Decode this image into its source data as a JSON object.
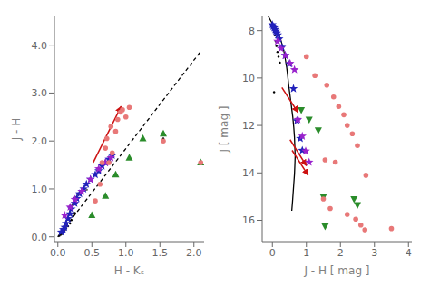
{
  "chart_data": [
    {
      "type": "scatter",
      "xlabel": "H - Kₛ",
      "ylabel": "J - H",
      "xlim": [
        -0.05,
        2.15
      ],
      "ylim": [
        -0.1,
        4.6
      ],
      "xticks": [
        {
          "value": 0.0,
          "label": "0.0"
        },
        0.5,
        {
          "value": 1.0,
          "label": "1.0"
        },
        1.5,
        {
          "value": 2.0,
          "label": "2.0"
        }
      ],
      "yticks": [
        {
          "value": 0.0,
          "label": "0.0"
        },
        {
          "value": 1.0,
          "label": "1.0"
        },
        {
          "value": 2.0,
          "label": "2.0"
        },
        {
          "value": 3.0,
          "label": "3.0"
        },
        {
          "value": 4.0,
          "label": "4.0"
        }
      ],
      "grid": false,
      "series": [
        {
          "type": "line",
          "color": "#444444",
          "line_style": "solid",
          "x": [
            0.0,
            0.02,
            0.04,
            0.06,
            0.08,
            0.1,
            0.12,
            0.15,
            0.18,
            0.22,
            0.26,
            0.3,
            0.33,
            0.36,
            0.38,
            0.4,
            0.42,
            0.44
          ],
          "values": [
            0.0,
            0.03,
            0.06,
            0.1,
            0.15,
            0.22,
            0.3,
            0.42,
            0.56,
            0.7,
            0.82,
            0.9,
            0.94,
            0.96,
            0.97,
            0.975,
            0.98,
            0.985
          ]
        },
        {
          "type": "line",
          "color": "#000000",
          "line_style": "dashed",
          "x": [
            0.0,
            2.1
          ],
          "values": [
            0.0,
            3.87
          ]
        },
        {
          "type": "arrow",
          "color": "#cc1111",
          "x": [
            0.52,
            0.93
          ],
          "values": [
            1.55,
            2.72
          ]
        },
        {
          "type": "scatter",
          "color": "#000000",
          "marker": "point",
          "x": [
            0.02,
            0.04,
            0.06,
            0.08,
            0.1,
            0.12,
            0.15,
            0.18,
            0.2,
            0.22,
            0.25,
            1.55
          ],
          "values": [
            0.02,
            0.04,
            0.06,
            0.1,
            0.14,
            0.18,
            0.22,
            0.28,
            0.35,
            0.42,
            0.5,
            2.05
          ]
        },
        {
          "type": "scatter",
          "color": "#2222bb",
          "marker": "star",
          "x": [
            0.05,
            0.08,
            0.1,
            0.12,
            0.15,
            0.18,
            0.2,
            0.25,
            0.28,
            0.32,
            0.38,
            0.42,
            0.48,
            0.55,
            0.6,
            0.65,
            0.7,
            0.75,
            0.8
          ],
          "values": [
            0.1,
            0.15,
            0.2,
            0.28,
            0.38,
            0.48,
            0.58,
            0.7,
            0.8,
            0.9,
            1.0,
            1.1,
            1.2,
            1.3,
            1.38,
            1.48,
            1.55,
            1.62,
            1.7
          ]
        },
        {
          "type": "scatter",
          "color": "#9922cc",
          "marker": "star",
          "x": [
            0.1,
            0.18,
            0.25,
            0.35,
            0.48,
            0.6,
            0.7,
            0.78
          ],
          "values": [
            0.45,
            0.62,
            0.78,
            0.95,
            1.2,
            1.42,
            1.55,
            1.65
          ]
        },
        {
          "type": "scatter",
          "color": "#2a8c2a",
          "marker": "triangle",
          "x": [
            0.5,
            0.7,
            0.85,
            1.05,
            1.25,
            1.55,
            2.1
          ],
          "values": [
            0.45,
            0.85,
            1.3,
            1.65,
            2.05,
            2.15,
            1.55
          ]
        },
        {
          "type": "scatter",
          "color": "#e87878",
          "marker": "circle",
          "x": [
            0.55,
            0.62,
            0.65,
            0.7,
            0.72,
            0.75,
            0.8,
            0.85,
            0.88,
            0.92,
            0.95,
            1.0,
            1.05,
            0.78,
            1.55,
            2.1
          ],
          "values": [
            0.75,
            1.1,
            1.55,
            1.85,
            2.05,
            1.55,
            1.75,
            2.2,
            2.45,
            2.6,
            2.65,
            2.5,
            2.7,
            2.3,
            2.0,
            1.55
          ]
        }
      ]
    },
    {
      "type": "scatter",
      "xlabel": "J - H [ mag ]",
      "ylabel": "J [ mag ]",
      "xlim": [
        -0.3,
        4.1
      ],
      "ylim": [
        16.9,
        7.4
      ],
      "xticks": [
        0,
        1,
        2,
        3,
        4
      ],
      "yticks": [
        8,
        10,
        12,
        14,
        16
      ],
      "grid": false,
      "series": [
        {
          "type": "line",
          "color": "#000000",
          "line_style": "solid",
          "x": [
            -0.12,
            -0.08,
            -0.04,
            0.0,
            0.04,
            0.08,
            0.12,
            0.16,
            0.2,
            0.25,
            0.3,
            0.35,
            0.38,
            0.42,
            0.45,
            0.48,
            0.52,
            0.56,
            0.6,
            0.63,
            0.65,
            0.66,
            0.67,
            0.66,
            0.65,
            0.63,
            0.61,
            0.59,
            0.57
          ],
          "values": [
            7.4,
            7.5,
            7.6,
            7.7,
            7.8,
            7.9,
            8.0,
            8.1,
            8.2,
            8.4,
            8.65,
            8.95,
            9.2,
            9.55,
            9.9,
            10.3,
            10.75,
            11.2,
            11.65,
            12.1,
            12.5,
            12.9,
            13.3,
            13.7,
            14.05,
            14.45,
            14.85,
            15.25,
            15.6
          ]
        },
        {
          "type": "arrow",
          "color": "#cc1111",
          "x": [
            0.28,
            0.75
          ],
          "values": [
            10.4,
            11.45
          ]
        },
        {
          "type": "arrow",
          "color": "#cc1111",
          "x": [
            0.52,
            1.0
          ],
          "values": [
            12.6,
            13.7
          ]
        },
        {
          "type": "arrow",
          "color": "#cc1111",
          "x": [
            0.58,
            1.05
          ],
          "values": [
            13.05,
            14.1
          ]
        },
        {
          "type": "scatter",
          "color": "#000000",
          "marker": "point",
          "x": [
            0.0,
            0.02,
            0.05,
            0.07,
            0.1,
            0.12,
            0.15,
            0.18,
            0.22,
            0.05
          ],
          "values": [
            7.78,
            7.9,
            8.05,
            8.2,
            8.45,
            8.65,
            8.9,
            9.1,
            9.35,
            10.6
          ]
        },
        {
          "type": "scatter",
          "color": "#2222bb",
          "marker": "star",
          "x": [
            0.0,
            0.02,
            0.05,
            0.08,
            0.1,
            0.13,
            0.16,
            0.2,
            0.28,
            0.38,
            0.5,
            0.62,
            0.72,
            0.82,
            0.88
          ],
          "values": [
            7.75,
            7.82,
            7.88,
            7.95,
            8.02,
            8.1,
            8.18,
            8.35,
            8.7,
            9.05,
            9.4,
            10.45,
            11.8,
            12.55,
            13.05
          ]
        },
        {
          "type": "scatter",
          "color": "#9922cc",
          "marker": "star",
          "x": [
            0.15,
            0.25,
            0.38,
            0.52,
            0.65,
            0.75,
            0.88,
            0.98,
            1.08
          ],
          "values": [
            8.45,
            8.75,
            9.05,
            9.38,
            9.65,
            11.75,
            12.45,
            13.08,
            13.55
          ]
        },
        {
          "type": "scatter",
          "color": "#2a8c2a",
          "marker": "triangle-down",
          "x": [
            0.85,
            1.08,
            1.35,
            1.5,
            1.55,
            2.4,
            2.5
          ],
          "values": [
            11.35,
            11.75,
            12.2,
            15.0,
            16.25,
            15.1,
            15.35
          ]
        },
        {
          "type": "scatter",
          "color": "#e87878",
          "marker": "circle",
          "x": [
            1.0,
            1.25,
            1.6,
            1.8,
            1.95,
            2.1,
            2.2,
            2.35,
            2.5,
            1.85,
            1.55,
            2.75,
            3.5,
            1.5,
            1.7,
            2.2,
            2.45,
            2.6,
            2.72
          ],
          "values": [
            9.1,
            9.9,
            10.3,
            10.8,
            11.2,
            11.55,
            12.0,
            12.35,
            12.85,
            13.55,
            13.45,
            14.1,
            16.35,
            15.1,
            15.5,
            15.75,
            15.95,
            16.2,
            16.4
          ]
        }
      ]
    }
  ]
}
